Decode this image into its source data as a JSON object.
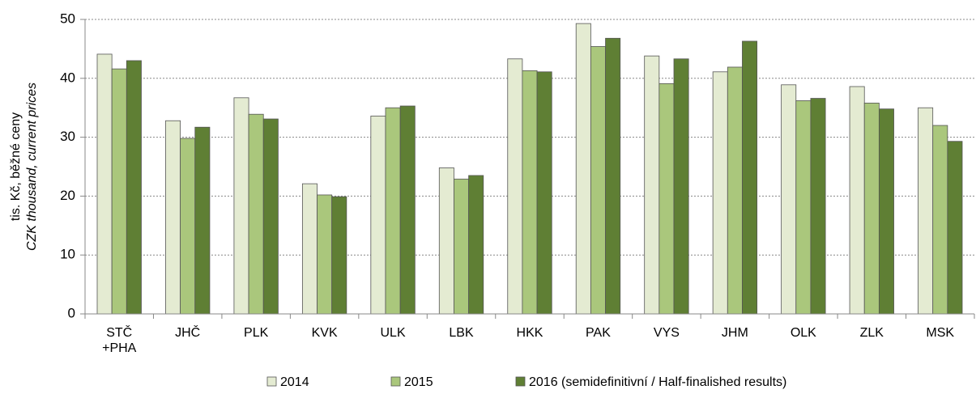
{
  "chart_data": {
    "type": "bar",
    "y_label": [
      "tis. Kč, běžné ceny",
      "CZK thousand, current prices"
    ],
    "categories": [
      "STČ\n+PHA",
      "JHČ",
      "PLK",
      "KVK",
      "ULK",
      "LBK",
      "HKK",
      "PAK",
      "VYS",
      "JHM",
      "OLK",
      "ZLK",
      "MSK"
    ],
    "series": [
      {
        "name": "2014",
        "color": "#e4ebd2",
        "values": [
          44.1,
          32.8,
          36.7,
          22.1,
          33.6,
          24.8,
          43.3,
          49.3,
          43.8,
          41.1,
          38.9,
          38.6,
          35.0
        ]
      },
      {
        "name": "2015",
        "color": "#aac77c",
        "values": [
          41.6,
          29.8,
          33.9,
          20.2,
          35.0,
          22.9,
          41.3,
          45.4,
          39.1,
          41.9,
          36.2,
          35.8,
          32.0
        ]
      },
      {
        "name": "2016 (semidefinitivní / Half-finalished results)",
        "color": "#5f7f34",
        "values": [
          43.0,
          31.7,
          33.1,
          19.9,
          35.3,
          23.5,
          41.1,
          46.8,
          43.3,
          46.3,
          36.6,
          34.8,
          29.3
        ]
      }
    ],
    "ylim": [
      0,
      50
    ],
    "yticks": [
      0,
      10,
      20,
      30,
      40,
      50
    ],
    "grid": true,
    "legend": "bottom"
  }
}
